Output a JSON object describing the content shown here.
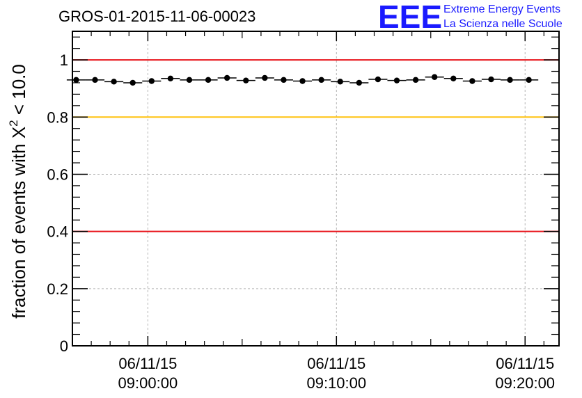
{
  "chart_data": {
    "type": "scatter",
    "title": "GROS-01-2015-11-06-00023",
    "ylabel_main": "fraction of events with X",
    "ylabel_sup": "2",
    "ylabel_tail": " < 10.0",
    "ylim": [
      0,
      1.1
    ],
    "xlim_minutes": [
      -4,
      21.8
    ],
    "yticks": [
      {
        "v": 0,
        "label": "0"
      },
      {
        "v": 0.2,
        "label": "0.2"
      },
      {
        "v": 0.4,
        "label": "0.4"
      },
      {
        "v": 0.6,
        "label": "0.6"
      },
      {
        "v": 0.8,
        "label": "0.8"
      },
      {
        "v": 1,
        "label": "1"
      }
    ],
    "xticks": [
      {
        "v": 0,
        "date": "06/11/15",
        "time": "09:00:00"
      },
      {
        "v": 10,
        "date": "06/11/15",
        "time": "09:10:00"
      },
      {
        "v": 20,
        "date": "06/11/15",
        "time": "09:20:00"
      }
    ],
    "reference_lines": [
      {
        "y": 1.0,
        "color": "#e8141b"
      },
      {
        "y": 0.8,
        "color": "#ffc20e"
      },
      {
        "y": 0.4,
        "color": "#e8141b"
      }
    ],
    "points": [
      {
        "x": -3.8,
        "y": 0.93
      },
      {
        "x": -2.8,
        "y": 0.93
      },
      {
        "x": -1.8,
        "y": 0.924
      },
      {
        "x": -0.8,
        "y": 0.92
      },
      {
        "x": 0.2,
        "y": 0.926
      },
      {
        "x": 1.2,
        "y": 0.935
      },
      {
        "x": 2.2,
        "y": 0.93
      },
      {
        "x": 3.2,
        "y": 0.93
      },
      {
        "x": 4.2,
        "y": 0.937
      },
      {
        "x": 5.2,
        "y": 0.928
      },
      {
        "x": 6.2,
        "y": 0.937
      },
      {
        "x": 7.2,
        "y": 0.93
      },
      {
        "x": 8.2,
        "y": 0.926
      },
      {
        "x": 9.2,
        "y": 0.93
      },
      {
        "x": 10.2,
        "y": 0.924
      },
      {
        "x": 11.2,
        "y": 0.92
      },
      {
        "x": 12.2,
        "y": 0.932
      },
      {
        "x": 13.2,
        "y": 0.928
      },
      {
        "x": 14.2,
        "y": 0.93
      },
      {
        "x": 15.2,
        "y": 0.94
      },
      {
        "x": 16.2,
        "y": 0.935
      },
      {
        "x": 17.2,
        "y": 0.926
      },
      {
        "x": 18.2,
        "y": 0.932
      },
      {
        "x": 19.2,
        "y": 0.93
      },
      {
        "x": 20.2,
        "y": 0.93
      }
    ],
    "bin_width_minutes": 1,
    "grid": true
  },
  "logo": {
    "mark": "EEE",
    "line1": "Extreme Energy Events",
    "line2": "La Scienza nelle Scuole",
    "color": "#1a1aff"
  }
}
